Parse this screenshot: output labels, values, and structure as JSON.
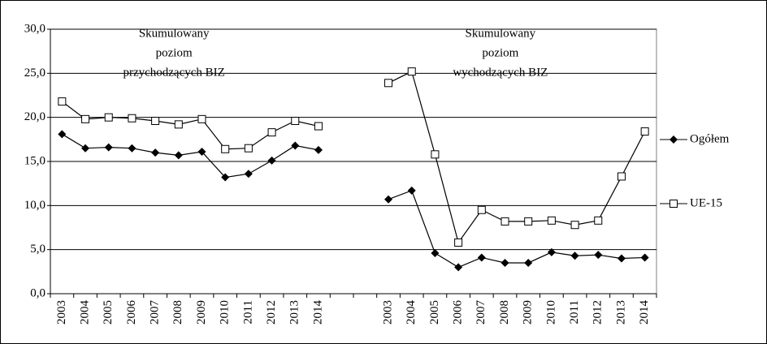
{
  "chart_data": {
    "type": "line",
    "annotations": [
      [
        "Skumulowany",
        "poziom",
        "przychodzących BIZ"
      ],
      [
        "Skumulowany",
        "poziom",
        "wychodzących BIZ"
      ]
    ],
    "categories": [
      "2003",
      "2004",
      "2005",
      "2006",
      "2007",
      "2008",
      "2009",
      "2010",
      "2011",
      "2012",
      "2013",
      "2014",
      null,
      null,
      "2003",
      "2004",
      "2005",
      "2006",
      "2007",
      "2008",
      "2009",
      "2010",
      "2011",
      "2012",
      "2013",
      "2014"
    ],
    "series": [
      {
        "name": "Ogółem",
        "color": "#000000",
        "marker": "diamond",
        "values": [
          18.1,
          16.5,
          16.6,
          16.5,
          16.0,
          15.7,
          16.1,
          13.2,
          13.6,
          15.1,
          16.8,
          16.3,
          null,
          null,
          10.7,
          11.7,
          4.6,
          3.0,
          4.1,
          3.5,
          3.5,
          4.7,
          4.3,
          4.4,
          4.0,
          4.1
        ]
      },
      {
        "name": "UE-15",
        "color": "#000000",
        "marker": "square",
        "values": [
          21.8,
          19.8,
          20.0,
          19.9,
          19.6,
          19.2,
          19.8,
          16.4,
          16.5,
          18.3,
          19.6,
          19.0,
          null,
          null,
          23.9,
          25.2,
          15.8,
          5.8,
          9.5,
          8.2,
          8.2,
          8.3,
          7.8,
          8.3,
          13.3,
          18.4
        ]
      }
    ],
    "ylim": [
      0,
      30
    ],
    "yticks": [
      {
        "value": 0,
        "label": "0,0"
      },
      {
        "value": 5,
        "label": "5,0"
      },
      {
        "value": 10,
        "label": "10,0"
      },
      {
        "value": 15,
        "label": "15,0"
      },
      {
        "value": 20,
        "label": "20,0"
      },
      {
        "value": 25,
        "label": "25,0"
      },
      {
        "value": 30,
        "label": "30,0"
      }
    ],
    "grid": true,
    "legend": "right"
  }
}
